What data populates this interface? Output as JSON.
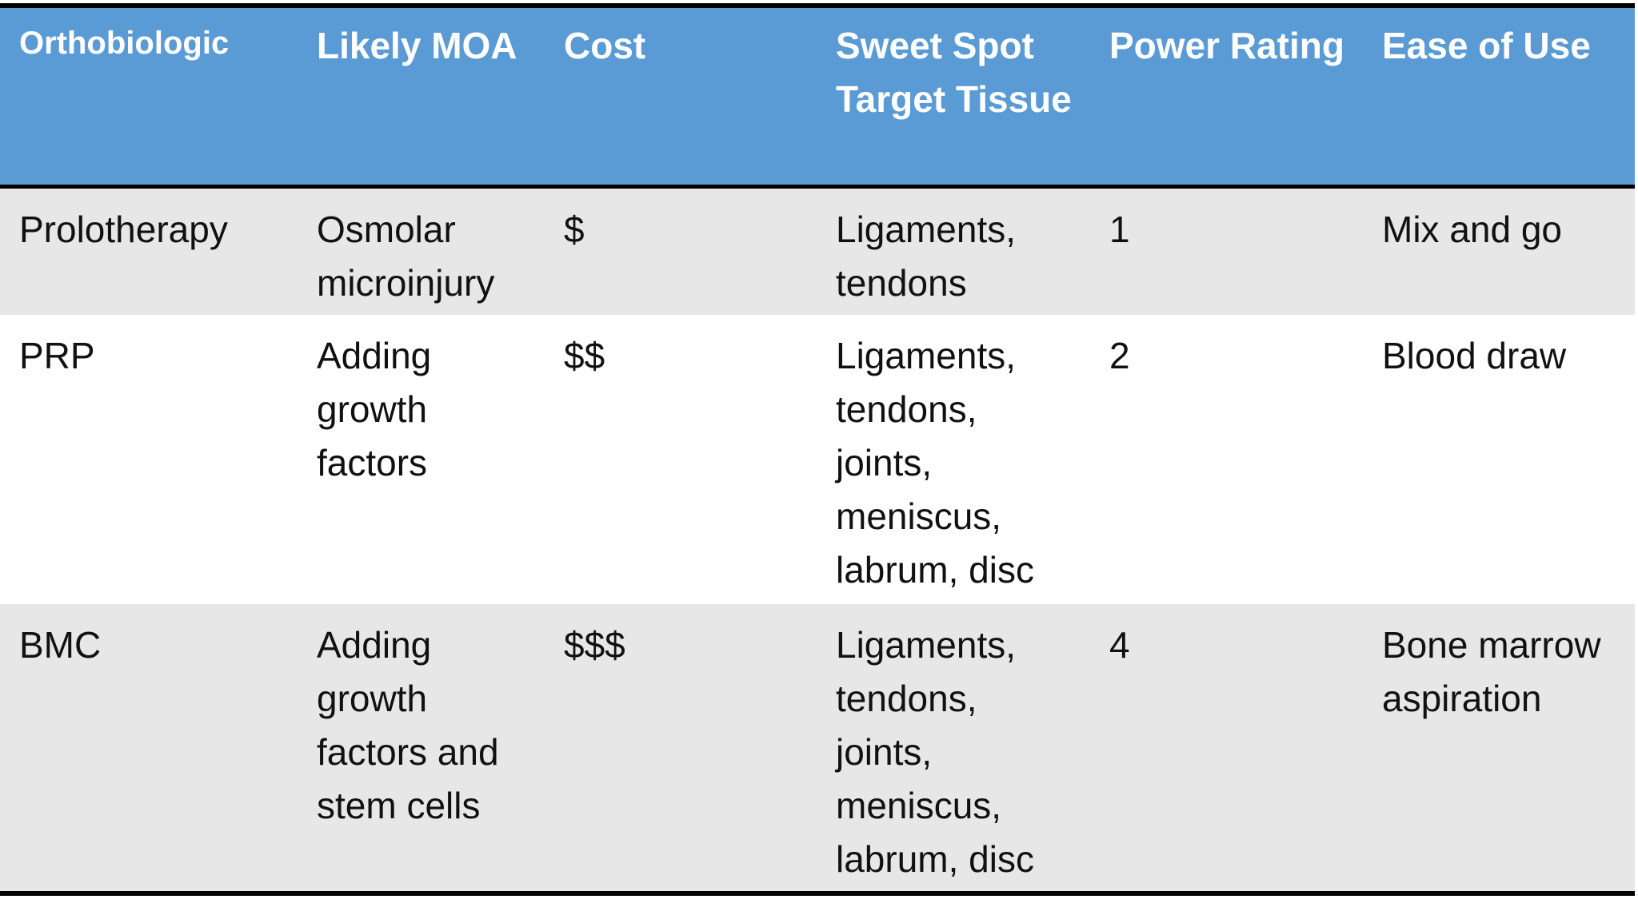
{
  "table": {
    "header": [
      "Orthobiologic",
      "Likely MOA",
      "Cost",
      "Sweet Spot Target Tissue",
      "Power Rating",
      "Ease of Use"
    ],
    "rows": [
      [
        "Prolotherapy",
        "Osmolar microinjury",
        "$",
        "Ligaments, tendons",
        "1",
        "Mix and go"
      ],
      [
        "PRP",
        "Adding growth factors",
        "$$",
        "Ligaments, tendons, joints, meniscus, labrum, disc",
        "2",
        "Blood draw"
      ],
      [
        "BMC",
        "Adding growth factors and stem cells",
        "$$$",
        "Ligaments, tendons, joints, meniscus, labrum, disc",
        "4",
        "Bone marrow aspiration"
      ]
    ]
  }
}
